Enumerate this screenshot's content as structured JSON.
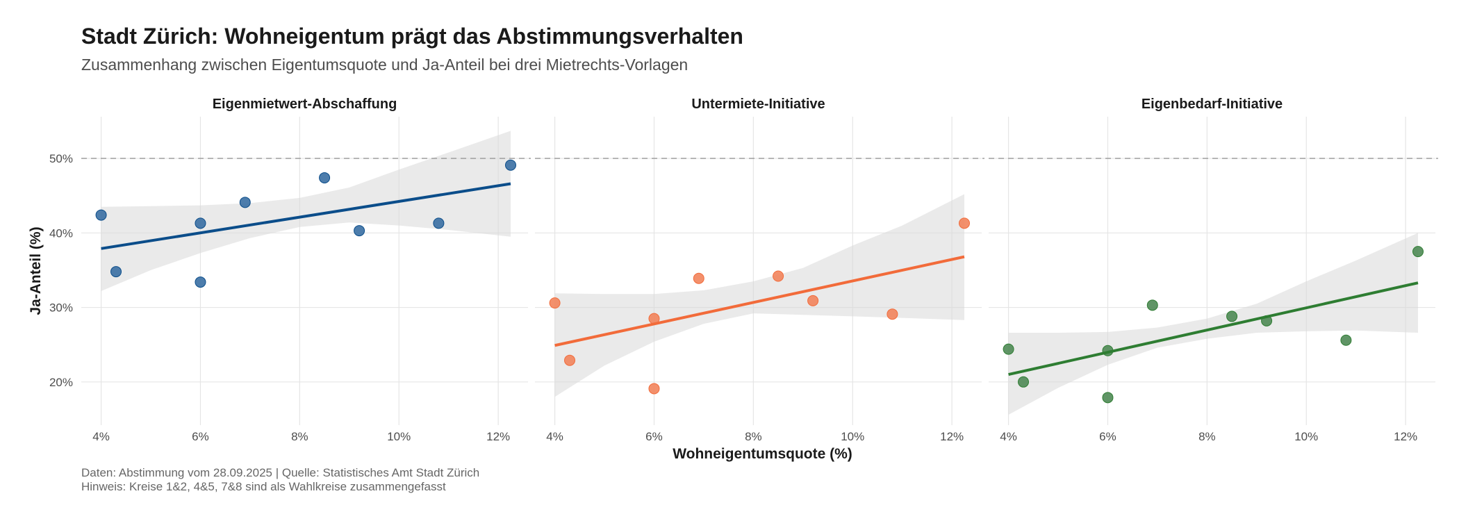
{
  "title": "Stadt Zürich: Wohneigentum prägt das Abstimmungsverhalten",
  "subtitle": "Zusammenhang zwischen Eigentumsquote und Ja-Anteil bei drei Mietrechts-Vorlagen",
  "caption_lines": [
    "Daten: Abstimmung vom 28.09.2025 | Quelle: Statistisches Amt Stadt Zürich",
    "Hinweis: Kreise 1&2, 4&5, 7&8 sind als Wahlkreise zusammengefasst"
  ],
  "chart_data": {
    "type": "scatter",
    "facets": true,
    "xlabel": "Wohneigentumsquote (%)",
    "ylabel": "Ja-Anteil (%)",
    "xlim": [
      3.6,
      12.6
    ],
    "ylim": [
      14.2,
      55.6
    ],
    "x_ticks": [
      4,
      6,
      8,
      10,
      12
    ],
    "x_tick_labels": [
      "4%",
      "6%",
      "8%",
      "10%",
      "12%"
    ],
    "y_ticks": [
      20,
      30,
      40,
      50
    ],
    "y_tick_labels": [
      "20%",
      "30%",
      "40%",
      "50%"
    ],
    "reference_line": {
      "y": 50,
      "style": "dashed"
    },
    "grid": true,
    "legend": "none",
    "x": [
      4.0,
      4.3,
      6.0,
      6.0,
      6.9,
      8.5,
      9.2,
      10.8,
      12.25
    ],
    "series": [
      {
        "name": "Eigenmietwert-Abschaffung",
        "color": "#3a6fa3",
        "line_color": "#0b4d8a",
        "y": [
          42.4,
          34.8,
          41.3,
          33.4,
          44.1,
          47.4,
          40.3,
          41.3,
          49.1
        ],
        "fit": {
          "x": [
            4.0,
            12.25
          ],
          "y": [
            37.9,
            46.6
          ]
        },
        "band": {
          "x": [
            4.0,
            5.0,
            6.0,
            7.0,
            8.0,
            9.0,
            10.0,
            11.0,
            12.25
          ],
          "lower": [
            32.2,
            35.0,
            37.3,
            39.3,
            40.8,
            41.4,
            41.0,
            40.4,
            39.5
          ],
          "upper": [
            43.5,
            43.6,
            43.7,
            44.0,
            44.7,
            46.1,
            48.5,
            50.8,
            53.7
          ]
        }
      },
      {
        "name": "Untermiete-Initiative",
        "color": "#f2845c",
        "line_color": "#f26b3a",
        "y": [
          30.6,
          22.9,
          28.5,
          19.1,
          33.9,
          34.2,
          30.9,
          29.1,
          41.3
        ],
        "fit": {
          "x": [
            4.0,
            12.25
          ],
          "y": [
            24.9,
            36.8
          ]
        },
        "band": {
          "x": [
            4.0,
            5.0,
            6.0,
            7.0,
            8.0,
            9.0,
            10.0,
            11.0,
            12.25
          ],
          "lower": [
            18.0,
            22.2,
            25.4,
            27.8,
            29.2,
            29.0,
            28.8,
            28.6,
            28.3
          ],
          "upper": [
            31.9,
            31.8,
            31.8,
            32.3,
            33.5,
            35.3,
            38.3,
            41.0,
            45.2
          ]
        }
      },
      {
        "name": "Eigenbedarf-Initiative",
        "color": "#4f8a55",
        "line_color": "#2e7d32",
        "y": [
          24.4,
          20.0,
          24.2,
          17.9,
          30.3,
          28.8,
          28.2,
          25.6,
          37.5
        ],
        "fit": {
          "x": [
            4.0,
            12.25
          ],
          "y": [
            21.0,
            33.3
          ]
        },
        "band": {
          "x": [
            4.0,
            5.0,
            6.0,
            7.0,
            8.0,
            9.0,
            10.0,
            11.0,
            12.25
          ],
          "lower": [
            15.6,
            19.2,
            22.3,
            24.6,
            25.8,
            26.6,
            26.8,
            26.9,
            26.6
          ],
          "upper": [
            26.6,
            26.6,
            26.7,
            27.3,
            28.5,
            30.5,
            33.5,
            36.3,
            40.0
          ]
        }
      }
    ]
  }
}
